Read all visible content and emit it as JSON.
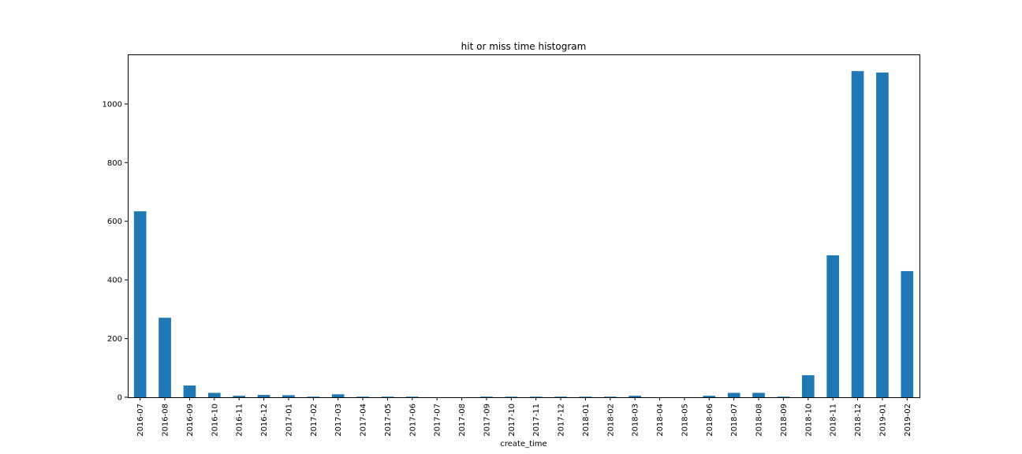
{
  "chart_data": {
    "type": "bar",
    "title": "hit or miss time histogram",
    "xlabel": "create_time",
    "ylabel": "",
    "categories": [
      "2016-07",
      "2016-08",
      "2016-09",
      "2016-10",
      "2016-11",
      "2016-12",
      "2017-01",
      "2017-02",
      "2017-03",
      "2017-04",
      "2017-05",
      "2017-06",
      "2017-07",
      "2017-08",
      "2017-09",
      "2017-10",
      "2017-11",
      "2017-12",
      "2018-01",
      "2018-02",
      "2018-03",
      "2018-04",
      "2018-05",
      "2018-06",
      "2018-07",
      "2018-08",
      "2018-09",
      "2018-10",
      "2018-11",
      "2018-12",
      "2019-01",
      "2019-02"
    ],
    "values": [
      634,
      271,
      40,
      15,
      5,
      8,
      7,
      2,
      10,
      2,
      2,
      2,
      0,
      0,
      2,
      2,
      2,
      2,
      2,
      2,
      5,
      0,
      0,
      5,
      15,
      15,
      2,
      75,
      484,
      1112,
      1107,
      430
    ],
    "ylim": [
      0,
      1169
    ],
    "yticks": [
      0,
      200,
      400,
      600,
      800,
      1000
    ],
    "grid": false,
    "legend": "none",
    "colors": {
      "bar": "#1f77b4",
      "axis": "#000000",
      "background": "#ffffff"
    }
  }
}
